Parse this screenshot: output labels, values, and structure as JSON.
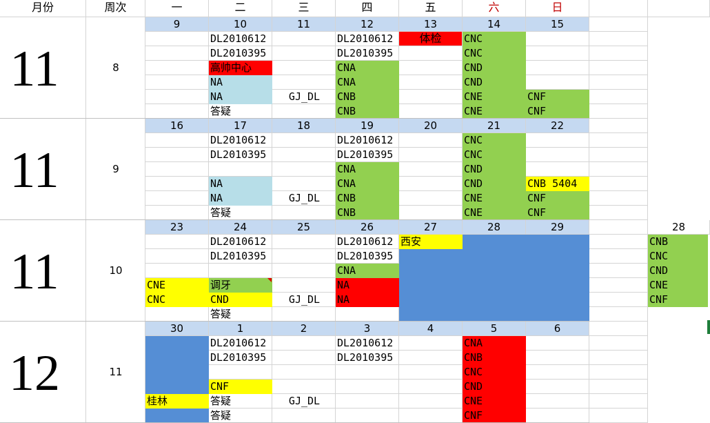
{
  "header": {
    "month": "月份",
    "week": "周次",
    "days": [
      "一",
      "二",
      "三",
      "四",
      "五",
      "六",
      "日"
    ]
  },
  "colors": {
    "blue_header": "#c5d9f1",
    "green": "#92d050",
    "red": "#ff0000",
    "light_blue": "#b7dee8",
    "yellow": "#ffff00",
    "dark_blue": "#558ed5",
    "weekend_text": "#c00000"
  },
  "blocks": [
    {
      "month": "11",
      "week": "8",
      "dates": [
        "9",
        "10",
        "11",
        "12",
        "13",
        "14",
        "15"
      ],
      "rows": [
        [
          null,
          {
            "t": "DL2010612"
          },
          null,
          {
            "t": "DL2010612"
          },
          null,
          {
            "t": "CNC",
            "c": "green"
          },
          null
        ],
        [
          null,
          {
            "t": "DL2010395"
          },
          null,
          {
            "t": "DL2010395"
          },
          null,
          {
            "t": "CNC",
            "c": "green"
          },
          null
        ],
        [
          null,
          {
            "t": "高帅中心",
            "c": "red"
          },
          null,
          {
            "t": "CNA",
            "c": "green"
          },
          null,
          {
            "t": "CND",
            "c": "green"
          },
          null
        ],
        [
          null,
          {
            "t": "NA",
            "c": "light_blue"
          },
          null,
          {
            "t": "CNA",
            "c": "green"
          },
          null,
          {
            "t": "CND",
            "c": "green"
          },
          null
        ],
        [
          null,
          {
            "t": "NA",
            "c": "light_blue"
          },
          {
            "t": "GJ_DL",
            "center": true
          },
          {
            "t": "CNB",
            "c": "green"
          },
          null,
          {
            "t": "CNE",
            "c": "green"
          },
          {
            "t": "CNF",
            "c": "green"
          }
        ],
        [
          null,
          {
            "t": "答疑"
          },
          null,
          {
            "t": "CNB",
            "c": "green"
          },
          null,
          {
            "t": "CNE",
            "c": "green"
          },
          {
            "t": "CNF",
            "c": "green"
          }
        ]
      ],
      "overlay13": {
        "t": "体检",
        "c": "red"
      }
    },
    {
      "month": "11",
      "week": "9",
      "dates": [
        "16",
        "17",
        "18",
        "19",
        "20",
        "21",
        "22"
      ],
      "rows": [
        [
          null,
          {
            "t": "DL2010612"
          },
          null,
          {
            "t": "DL2010612"
          },
          null,
          {
            "t": "CNC",
            "c": "green"
          },
          null
        ],
        [
          null,
          {
            "t": "DL2010395"
          },
          null,
          {
            "t": "DL2010395"
          },
          null,
          {
            "t": "CNC",
            "c": "green"
          },
          null
        ],
        [
          null,
          null,
          null,
          {
            "t": "CNA",
            "c": "green"
          },
          null,
          {
            "t": "CND",
            "c": "green"
          },
          null
        ],
        [
          null,
          {
            "t": "NA",
            "c": "light_blue"
          },
          null,
          {
            "t": "CNA",
            "c": "green"
          },
          null,
          {
            "t": "CND",
            "c": "green"
          },
          {
            "t": "CNB 5404",
            "c": "yellow"
          }
        ],
        [
          null,
          {
            "t": "NA",
            "c": "light_blue"
          },
          {
            "t": "GJ_DL",
            "center": true
          },
          {
            "t": "CNB",
            "c": "green"
          },
          null,
          {
            "t": "CNE",
            "c": "green"
          },
          {
            "t": "CNF",
            "c": "green"
          }
        ],
        [
          null,
          {
            "t": "答疑"
          },
          null,
          {
            "t": "CNB",
            "c": "green"
          },
          null,
          {
            "t": "CNE",
            "c": "green"
          },
          {
            "t": "CNF",
            "c": "green"
          }
        ]
      ]
    },
    {
      "month": "11",
      "week": "10",
      "dates": [
        "23",
        "24",
        "25",
        "26",
        "27",
        "28",
        "29"
      ],
      "rows": [
        [
          null,
          {
            "t": "DL2010612"
          },
          null,
          {
            "t": "DL2010612"
          },
          {
            "t": "西安",
            "c": "yellow"
          },
          {
            "c": "dark_blue"
          },
          {
            "c": "dark_blue"
          }
        ],
        [
          null,
          {
            "t": "DL2010395"
          },
          null,
          {
            "t": "DL2010395"
          },
          {
            "c": "dark_blue"
          },
          {
            "c": "dark_blue"
          },
          {
            "c": "dark_blue"
          }
        ],
        [
          null,
          null,
          null,
          {
            "t": "CNA",
            "c": "green"
          },
          {
            "c": "dark_blue"
          },
          {
            "c": "dark_blue"
          },
          {
            "c": "dark_blue"
          }
        ],
        [
          {
            "t": "CNE",
            "c": "yellow"
          },
          {
            "t": "调牙",
            "c": "green"
          },
          null,
          {
            "t": "NA",
            "c": "red"
          },
          {
            "c": "dark_blue"
          },
          {
            "c": "dark_blue"
          },
          {
            "c": "dark_blue"
          }
        ],
        [
          {
            "t": "CNC",
            "c": "yellow"
          },
          {
            "t": "CND",
            "c": "yellow"
          },
          {
            "t": "GJ_DL",
            "center": true
          },
          {
            "t": "NA",
            "c": "red"
          },
          {
            "c": "dark_blue"
          },
          {
            "c": "dark_blue"
          },
          {
            "c": "dark_blue"
          }
        ],
        [
          null,
          {
            "t": "答疑"
          },
          null,
          null,
          {
            "c": "dark_blue"
          },
          {
            "c": "dark_blue"
          },
          {
            "c": "dark_blue"
          }
        ]
      ],
      "side": {
        "date": "28",
        "items": [
          "CNB",
          "CNC",
          "CND",
          "CNE",
          "CNF"
        ]
      }
    },
    {
      "month": "12",
      "week": "11",
      "dates": [
        "30",
        "1",
        "2",
        "3",
        "4",
        "5",
        "6"
      ],
      "rows": [
        [
          {
            "c": "dark_blue"
          },
          {
            "t": "DL2010612"
          },
          null,
          {
            "t": "DL2010612"
          },
          null,
          {
            "t": "CNA",
            "c": "red"
          },
          null
        ],
        [
          {
            "c": "dark_blue"
          },
          {
            "t": "DL2010395"
          },
          null,
          {
            "t": "DL2010395"
          },
          null,
          {
            "t": "CNB",
            "c": "red"
          },
          null
        ],
        [
          {
            "c": "dark_blue"
          },
          null,
          null,
          null,
          null,
          {
            "t": "CNC",
            "c": "red"
          },
          null
        ],
        [
          {
            "c": "dark_blue"
          },
          {
            "t": "CNF",
            "c": "yellow"
          },
          null,
          null,
          null,
          {
            "t": "CND",
            "c": "red"
          },
          null
        ],
        [
          {
            "t": "桂林",
            "c": "yellow"
          },
          {
            "t": "答疑"
          },
          {
            "t": "GJ_DL",
            "center": true
          },
          null,
          null,
          {
            "t": "CNE",
            "c": "red"
          },
          null
        ],
        [
          {
            "c": "dark_blue"
          },
          {
            "t": "答疑"
          },
          null,
          null,
          null,
          {
            "t": "CNF",
            "c": "red"
          },
          null
        ]
      ]
    }
  ]
}
